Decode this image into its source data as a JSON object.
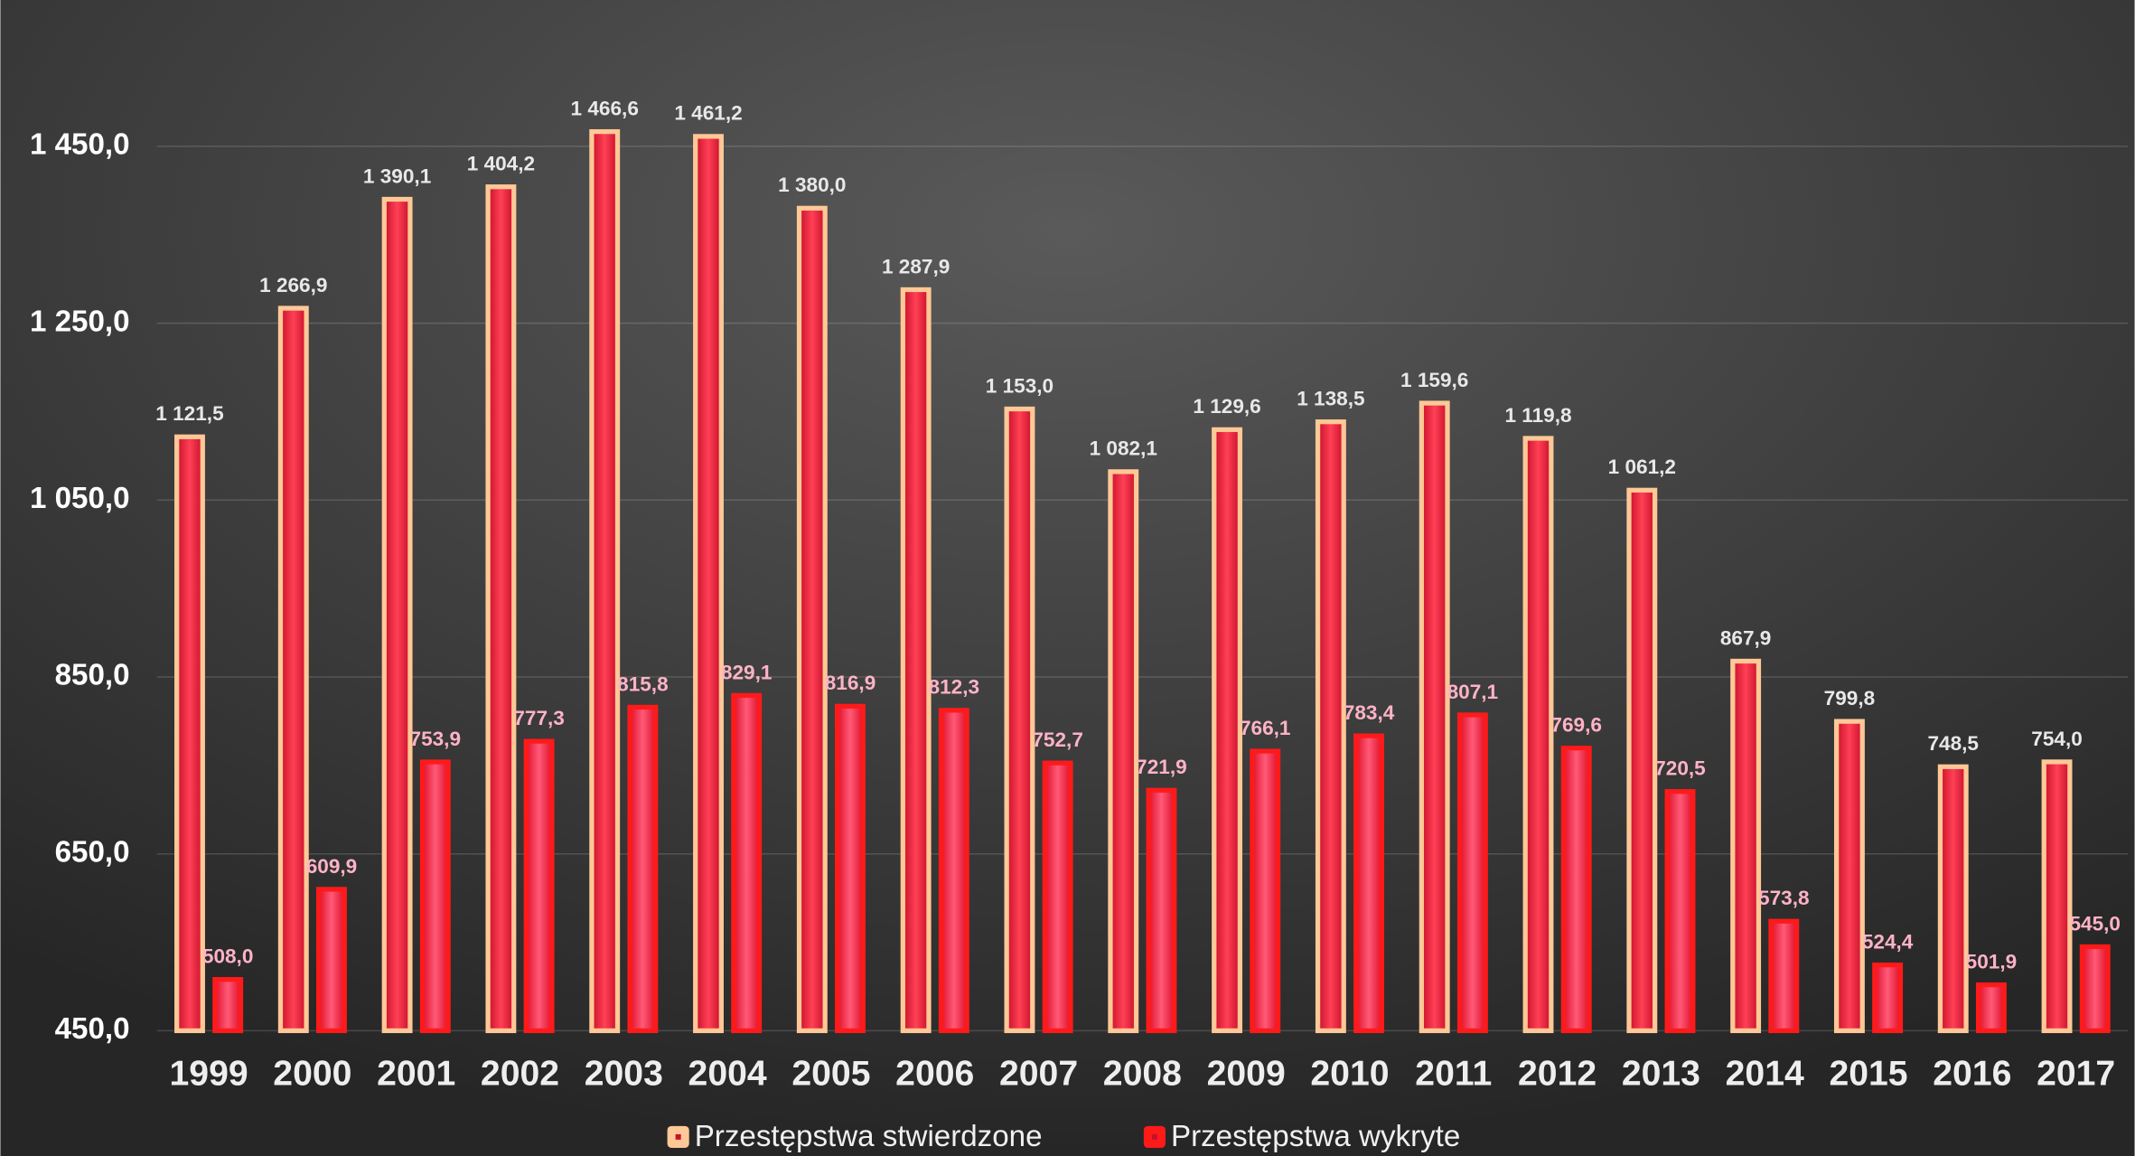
{
  "chart_data": {
    "type": "bar",
    "categories": [
      "1999",
      "2000",
      "2001",
      "2002",
      "2003",
      "2004",
      "2005",
      "2006",
      "2007",
      "2008",
      "2009",
      "2010",
      "2011",
      "2012",
      "2013",
      "2014",
      "2015",
      "2016",
      "2017"
    ],
    "series": [
      {
        "name": "Przestępstwa stwierdzone",
        "color": "#ffc896",
        "values": [
          1121.5,
          1266.9,
          1390.1,
          1404.2,
          1466.6,
          1461.2,
          1380.0,
          1287.9,
          1153.0,
          1082.1,
          1129.6,
          1138.5,
          1159.6,
          1119.8,
          1061.2,
          867.9,
          799.8,
          748.5,
          754.0
        ],
        "value_labels": [
          "1 121,5",
          "1 266,9",
          "1 390,1",
          "1 404,2",
          "1 466,6",
          "1 461,2",
          "1 380,0",
          "1 287,9",
          "1 153,0",
          "1 082,1",
          "1 129,6",
          "1 138,5",
          "1 159,6",
          "1 119,8",
          "1 061,2",
          "867,9",
          "799,8",
          "748,5",
          "754,0"
        ]
      },
      {
        "name": "Przestępstwa wykryte",
        "color": "#ff1a1a",
        "values": [
          508.0,
          609.9,
          753.9,
          777.3,
          815.8,
          829.1,
          816.9,
          812.3,
          752.7,
          721.9,
          766.1,
          783.4,
          807.1,
          769.6,
          720.5,
          573.8,
          524.4,
          501.9,
          545.0
        ],
        "value_labels": [
          "508,0",
          "609,9",
          "753,9",
          "777,3",
          "815,8",
          "829,1",
          "816,9",
          "812,3",
          "752,7",
          "721,9",
          "766,1",
          "783,4",
          "807,1",
          "769,6",
          "720,5",
          "573,8",
          "524,4",
          "501,9",
          "545,0"
        ]
      }
    ],
    "ylim": [
      450,
      1600
    ],
    "yticks": [
      {
        "value": 450,
        "label": "450,0"
      },
      {
        "value": 650,
        "label": "650,0"
      },
      {
        "value": 850,
        "label": "850,0"
      },
      {
        "value": 1050,
        "label": "1 050,0"
      },
      {
        "value": 1250,
        "label": "1 250,0"
      },
      {
        "value": 1450,
        "label": "1 450,0"
      }
    ],
    "grid": true,
    "legend": "bottom"
  }
}
